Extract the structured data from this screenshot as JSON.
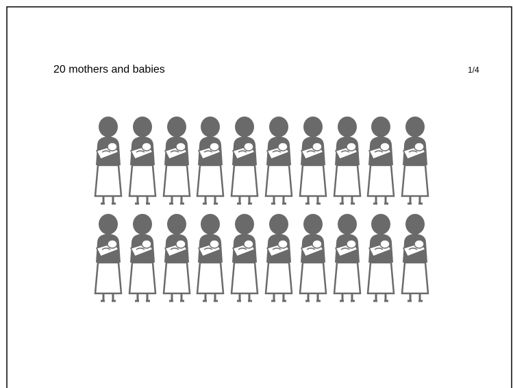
{
  "slide": {
    "title": "20 mothers and babies",
    "page_number": "1/4"
  }
}
